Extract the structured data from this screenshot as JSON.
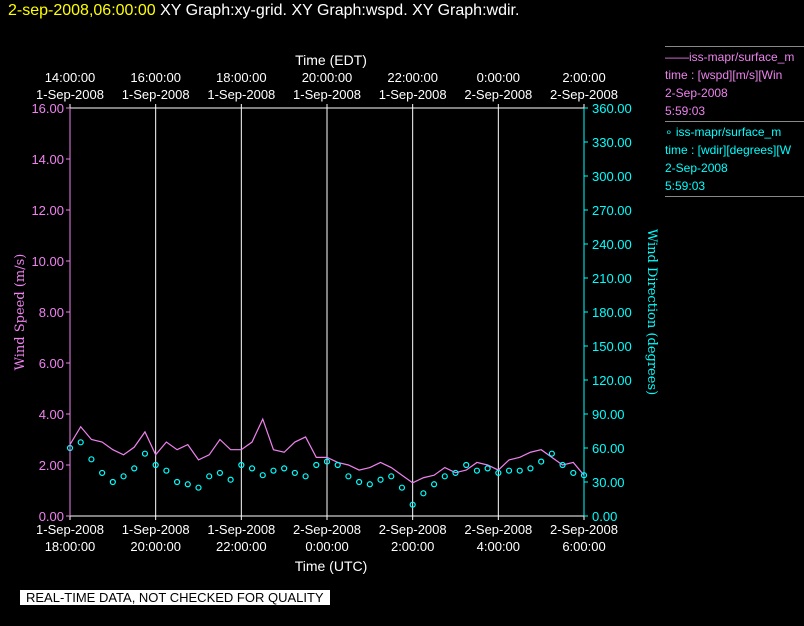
{
  "header": {
    "date": "2-sep-2008,06:00:00",
    "title": "XY Graph:xy-grid.  XY Graph:wspd.  XY Graph:wdir."
  },
  "legend": {
    "wspd": {
      "line1": "——iss-mapr/surface_m",
      "line2": "time : [wspd][m/s][Win",
      "line3": "2-Sep-2008",
      "line4": "5:59:03"
    },
    "wdir": {
      "line1": "∘ iss-mapr/surface_m",
      "line2": "time : [wdir][degrees][W",
      "line3": "2-Sep-2008",
      "line4": "5:59:03"
    }
  },
  "notice": "REAL-TIME DATA, NOT CHECKED FOR QUALITY",
  "colors": {
    "wspd": "#ee82ee",
    "wdir": "#00ffff",
    "grid": "#ffffff",
    "axis": "#ffffff"
  },
  "chart_data": {
    "type": "scatter",
    "top_axis_title": "Time (EDT)",
    "bottom_axis_title": "Time (UTC)",
    "left_axis_title": "Wind Speed (m/s)",
    "right_axis_title": "Wind Direction (degrees)",
    "x_range_hours": [
      0,
      12
    ],
    "top_ticks": [
      {
        "t": "14:00:00",
        "d": "1-Sep-2008"
      },
      {
        "t": "16:00:00",
        "d": "1-Sep-2008"
      },
      {
        "t": "18:00:00",
        "d": "1-Sep-2008"
      },
      {
        "t": "20:00:00",
        "d": "1-Sep-2008"
      },
      {
        "t": "22:00:00",
        "d": "1-Sep-2008"
      },
      {
        "t": "0:00:00",
        "d": "2-Sep-2008"
      },
      {
        "t": "2:00:00",
        "d": "2-Sep-2008"
      }
    ],
    "bottom_ticks": [
      {
        "d": "1-Sep-2008",
        "t": "18:00:00"
      },
      {
        "d": "1-Sep-2008",
        "t": "20:00:00"
      },
      {
        "d": "1-Sep-2008",
        "t": "22:00:00"
      },
      {
        "d": "2-Sep-2008",
        "t": "0:00:00"
      },
      {
        "d": "2-Sep-2008",
        "t": "2:00:00"
      },
      {
        "d": "2-Sep-2008",
        "t": "4:00:00"
      },
      {
        "d": "2-Sep-2008",
        "t": "6:00:00"
      }
    ],
    "left_ticks": [
      "0.00",
      "2.00",
      "4.00",
      "6.00",
      "8.00",
      "10.00",
      "12.00",
      "14.00",
      "16.00"
    ],
    "right_ticks": [
      "0.00",
      "30.00",
      "60.00",
      "90.00",
      "120.00",
      "150.00",
      "180.00",
      "210.00",
      "240.00",
      "270.00",
      "300.00",
      "330.00",
      "360.00"
    ],
    "ylim_left": [
      0,
      16
    ],
    "ylim_right": [
      0,
      360
    ],
    "grid": "vertical",
    "series": [
      {
        "name": "iss-mapr/surface_m time : [wspd][m/s]",
        "kind": "line",
        "x_hours": [
          0,
          0.25,
          0.5,
          0.75,
          1,
          1.25,
          1.5,
          1.75,
          2,
          2.25,
          2.5,
          2.75,
          3,
          3.25,
          3.5,
          3.75,
          4,
          4.25,
          4.5,
          4.75,
          5,
          5.25,
          5.5,
          5.75,
          6,
          6.25,
          6.5,
          6.75,
          7,
          7.25,
          7.5,
          7.75,
          8,
          8.25,
          8.5,
          8.75,
          9,
          9.25,
          9.5,
          9.75,
          10,
          10.25,
          10.5,
          10.75,
          11,
          11.25,
          11.5,
          11.75,
          12
        ],
        "y": [
          2.8,
          3.5,
          3.0,
          2.9,
          2.6,
          2.4,
          2.7,
          3.3,
          2.4,
          2.9,
          2.6,
          2.8,
          2.2,
          2.4,
          3.0,
          2.6,
          2.6,
          2.9,
          3.8,
          2.6,
          2.5,
          2.9,
          3.1,
          2.3,
          2.3,
          2.1,
          2.0,
          1.8,
          1.9,
          2.1,
          1.9,
          1.6,
          1.3,
          1.5,
          1.6,
          1.9,
          1.7,
          1.8,
          2.1,
          2.0,
          1.8,
          2.2,
          2.3,
          2.5,
          2.6,
          2.3,
          2.0,
          2.1,
          1.6
        ]
      },
      {
        "name": "iss-mapr/surface_m time : [wdir][degrees]",
        "kind": "points",
        "x_hours": [
          0,
          0.25,
          0.5,
          0.75,
          1,
          1.25,
          1.5,
          1.75,
          2,
          2.25,
          2.5,
          2.75,
          3,
          3.25,
          3.5,
          3.75,
          4,
          4.25,
          4.5,
          4.75,
          5,
          5.25,
          5.5,
          5.75,
          6,
          6.25,
          6.5,
          6.75,
          7,
          7.25,
          7.5,
          7.75,
          8,
          8.25,
          8.5,
          8.75,
          9,
          9.25,
          9.5,
          9.75,
          10,
          10.25,
          10.5,
          10.75,
          11,
          11.25,
          11.5,
          11.75,
          12
        ],
        "y": [
          60,
          65,
          50,
          38,
          30,
          35,
          42,
          55,
          45,
          40,
          30,
          28,
          25,
          35,
          38,
          32,
          45,
          42,
          36,
          40,
          42,
          38,
          35,
          45,
          48,
          45,
          35,
          30,
          28,
          32,
          35,
          25,
          10,
          20,
          28,
          35,
          38,
          45,
          40,
          42,
          38,
          40,
          40,
          42,
          48,
          55,
          45,
          38,
          36
        ]
      }
    ]
  }
}
